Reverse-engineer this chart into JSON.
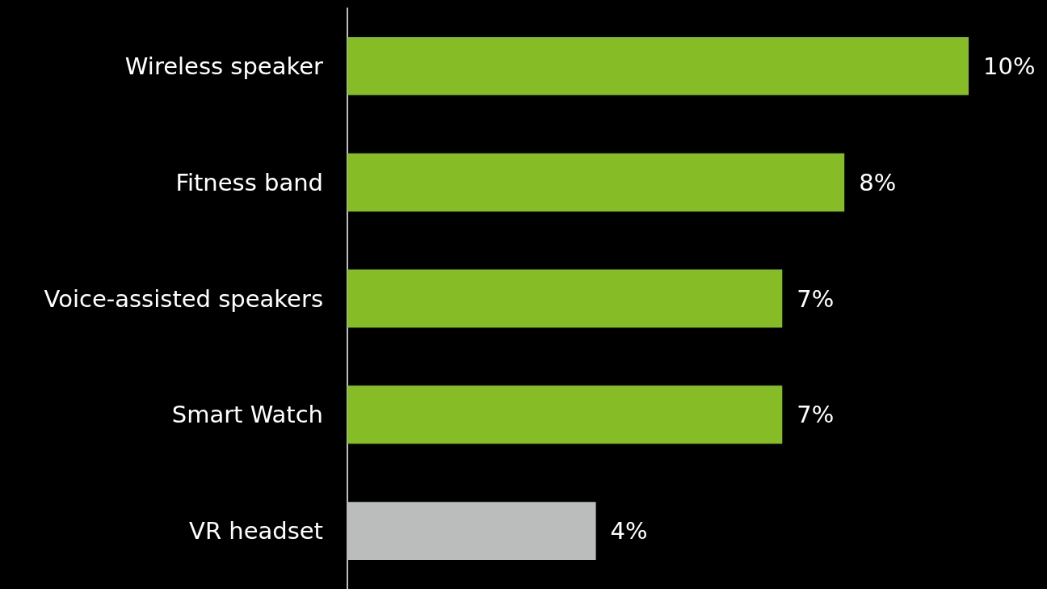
{
  "chart_data": {
    "type": "bar",
    "orientation": "horizontal",
    "categories": [
      "Wireless speaker",
      "Fitness band",
      "Voice-assisted speakers",
      "Smart Watch",
      "VR headset"
    ],
    "values": [
      10,
      8,
      7,
      7,
      4
    ],
    "colors": [
      "#86bc25",
      "#86bc25",
      "#86bc25",
      "#86bc25",
      "#bbbcbc"
    ],
    "value_labels": [
      "10%",
      "8%",
      "7%",
      "7%",
      "4%"
    ],
    "xlim": [
      0,
      10
    ],
    "tick_labels": "y"
  }
}
